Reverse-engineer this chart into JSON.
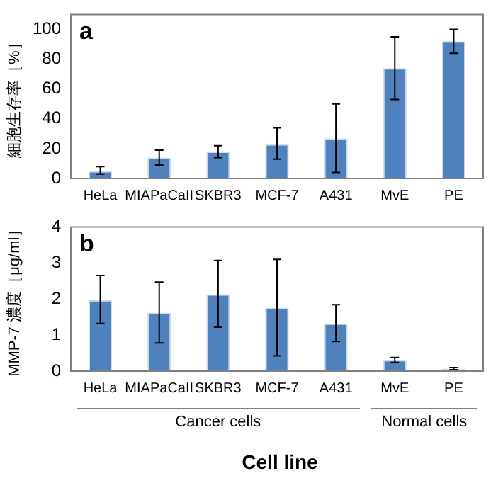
{
  "chart_data": [
    {
      "type": "bar",
      "title": "a",
      "ylabel": "細胞生存率［%］",
      "categories": [
        "HeLa",
        "MIAPaCaII",
        "SKBR3",
        "MCF-7",
        "A431",
        "MvE",
        "PE"
      ],
      "series": [
        {
          "color": "#4f81bd",
          "values": [
            5,
            14,
            18,
            23,
            27,
            74,
            92
          ],
          "errors": [
            [
              3,
              8
            ],
            [
              9,
              19
            ],
            [
              14,
              22
            ],
            [
              13,
              34
            ],
            [
              4,
              50
            ],
            [
              53,
              95
            ],
            [
              84,
              100
            ]
          ]
        }
      ],
      "ylim": [
        0,
        110
      ],
      "yticks": [
        0,
        20,
        40,
        60,
        80,
        100
      ],
      "grid": false,
      "legend": false
    },
    {
      "type": "bar",
      "title": "b",
      "ylabel": "MMP-7 濃度［μg/ml］",
      "xlabel": "Cell line",
      "categories": [
        "HeLa",
        "MIAPaCaII",
        "SKBR3",
        "MCF-7",
        "A431",
        "MvE",
        "PE"
      ],
      "series": [
        {
          "color": "#4f81bd",
          "values": [
            1.97,
            1.62,
            2.13,
            1.76,
            1.32,
            0.31,
            0.07
          ],
          "errors": [
            [
              1.32,
              2.65
            ],
            [
              0.78,
              2.47
            ],
            [
              1.22,
              3.07
            ],
            [
              0.42,
              3.1
            ],
            [
              0.82,
              1.84
            ],
            [
              0.24,
              0.38
            ],
            [
              0.04,
              0.1
            ]
          ]
        }
      ],
      "ylim": [
        0,
        4
      ],
      "yticks": [
        0,
        1,
        2,
        3,
        4
      ],
      "grid": false,
      "legend": false,
      "annotations": [
        "Cancer cells",
        "Normal cells"
      ]
    }
  ]
}
